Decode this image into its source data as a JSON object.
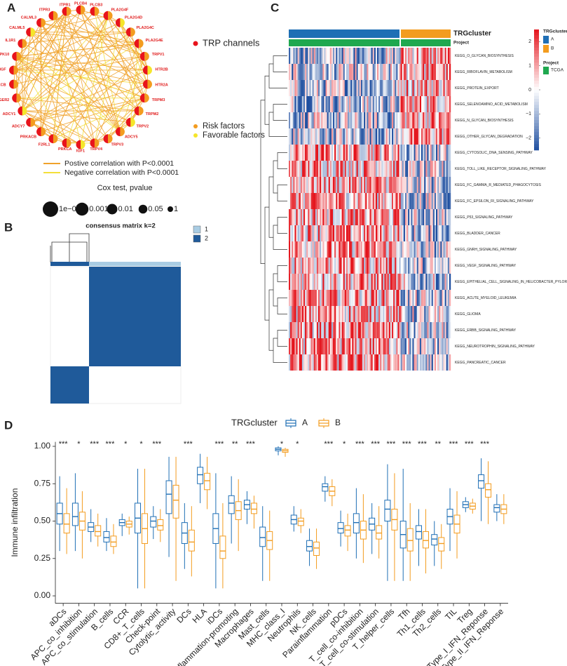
{
  "chart_data": [
    {
      "type": "network",
      "panel_label": "A",
      "nodes": [
        {
          "label": "PLCB4",
          "factor": "Risk factors"
        },
        {
          "label": "PLCB3",
          "factor": "Risk factors"
        },
        {
          "label": "PLA2G4F",
          "factor": "Risk factors"
        },
        {
          "label": "PLA2G4D",
          "factor": "Favorable factors"
        },
        {
          "label": "PLA2G4C",
          "factor": "Risk factors"
        },
        {
          "label": "PLA2G4E",
          "factor": "Risk factors"
        },
        {
          "label": "TRPV1",
          "factor": "Risk factors"
        },
        {
          "label": "HTR2B",
          "factor": "Favorable factors"
        },
        {
          "label": "HTR2A",
          "factor": "Risk factors"
        },
        {
          "label": "TRPM3",
          "factor": "Risk factors"
        },
        {
          "label": "TRPM2",
          "factor": "Risk factors"
        },
        {
          "label": "TRPV2",
          "factor": "Favorable factors"
        },
        {
          "label": "ADCY5",
          "factor": "Risk factors"
        },
        {
          "label": "TRPV3",
          "factor": "Risk factors"
        },
        {
          "label": "TRPV4",
          "factor": "Risk factors"
        },
        {
          "label": "IGF1",
          "factor": "Favorable factors"
        },
        {
          "label": "PRKCA",
          "factor": "Risk factors"
        },
        {
          "label": "F2RL1",
          "factor": "Risk factors"
        },
        {
          "label": "PRKACB",
          "factor": "Risk factors"
        },
        {
          "label": "ADCY7",
          "factor": "Risk factors"
        },
        {
          "label": "ADCY1",
          "factor": "Favorable factors"
        },
        {
          "label": "PTGER2",
          "factor": "Risk factors"
        },
        {
          "label": "PRKCB",
          "factor": "Risk factors"
        },
        {
          "label": "NGF",
          "factor": "Risk factors"
        },
        {
          "label": "MAPK10",
          "factor": "Risk factors"
        },
        {
          "label": "IL1R1",
          "factor": "Risk factors"
        },
        {
          "label": "CALML5",
          "factor": "Favorable factors"
        },
        {
          "label": "CALML3",
          "factor": "Risk factors"
        },
        {
          "label": "ITPR3",
          "factor": "Risk factors"
        },
        {
          "label": "ITPR1",
          "factor": "Risk factors"
        }
      ],
      "node_legend": [
        {
          "name": "TRP channels",
          "color": "#e8141c"
        },
        {
          "name": "Risk factors",
          "color": "#f39c1f"
        },
        {
          "name": "Favorable factors",
          "color": "#f5e52a"
        }
      ],
      "edge_legend": [
        {
          "name": "Postive correlation with P<0.0001",
          "color": "#f0a22b"
        },
        {
          "name": "Negative correlation with P<0.0001",
          "color": "#f3df3a"
        }
      ],
      "size_title": "Cox test, pvalue",
      "sizes": [
        {
          "value": 0.0001,
          "label": "1e−04"
        },
        0.001,
        0.01,
        0.05,
        1
      ]
    },
    {
      "type": "consensus",
      "panel_label": "B",
      "title": "consensus matrix k=2",
      "legend": [
        {
          "name": "1",
          "color": "#a9cce3"
        },
        {
          "name": "2",
          "color": "#1f5a9a"
        }
      ]
    },
    {
      "type": "heatmap",
      "panel_label": "C",
      "annotations": [
        {
          "name": "TRGcluster",
          "groups": [
            {
              "name": "A",
              "color": "#1f6fb5"
            },
            {
              "name": "B",
              "color": "#f39c1f"
            }
          ]
        },
        {
          "name": "Project",
          "groups": [
            {
              "name": "TCGA",
              "color": "#1fa84f"
            }
          ]
        }
      ],
      "rows": [
        {
          "name": "KEGG_O_GLYCAN_BIOSYNTHESIS",
          "higher_in": "B"
        },
        {
          "name": "KEGG_RIBOFLAVIN_METABOLISM",
          "higher_in": "B"
        },
        {
          "name": "KEGG_PROTEIN_EXPORT",
          "higher_in": "B"
        },
        {
          "name": "KEGG_SELENOAMINO_ACID_METABOLISM",
          "higher_in": "B"
        },
        {
          "name": "KEGG_N_GLYCAN_BIOSYNTHESIS",
          "higher_in": "B"
        },
        {
          "name": "KEGG_OTHER_GLYCAN_DEGRADATION",
          "higher_in": "B"
        },
        {
          "name": "KEGG_CYTOSOLIC_DNA_SENSING_PATHWAY",
          "higher_in": "A"
        },
        {
          "name": "KEGG_TOLL_LIKE_RECEPTOR_SIGNALING_PATHWAY",
          "higher_in": "A"
        },
        {
          "name": "KEGG_FC_GAMMA_R_MEDIATED_PHAGOCYTOSIS",
          "higher_in": "A"
        },
        {
          "name": "KEGG_FC_EPSILON_RI_SIGNALING_PATHWAY",
          "higher_in": "A"
        },
        {
          "name": "KEGG_P53_SIGNALING_PATHWAY",
          "higher_in": "A"
        },
        {
          "name": "KEGG_BLADDER_CANCER",
          "higher_in": "A"
        },
        {
          "name": "KEGG_GNRH_SIGNALING_PATHWAY",
          "higher_in": "A"
        },
        {
          "name": "KEGG_VEGF_SIGNALING_PATHWAY",
          "higher_in": "A"
        },
        {
          "name": "KEGG_EPITHELIAL_CELL_SIGNALING_IN_HELICOBACTER_PYLORI_INFECTION",
          "higher_in": "A"
        },
        {
          "name": "KEGG_ACUTE_MYELOID_LEUKEMIA",
          "higher_in": "A"
        },
        {
          "name": "KEGG_GLIOMA",
          "higher_in": "A"
        },
        {
          "name": "KEGG_ERBB_SIGNALING_PATHWAY",
          "higher_in": "A"
        },
        {
          "name": "KEGG_NEUROTROPHIN_SIGNALING_PATHWAY",
          "higher_in": "A"
        },
        {
          "name": "KEGG_PANCREATIC_CANCER",
          "higher_in": "A"
        }
      ],
      "colors": [
        "#1f4fa0",
        "#ffffff",
        "#e4141c"
      ],
      "clim": [
        -2.5,
        2.5
      ],
      "cticks": [
        2,
        1,
        0,
        {
          "value": -1,
          "label": "−1"
        },
        {
          "value": -2,
          "label": "−2"
        }
      ]
    },
    {
      "type": "box",
      "panel_label": "D",
      "legend_title": "TRGcluster",
      "ylabel": "Immune infiltration",
      "categories": [
        "aDCs",
        "APC_co_inhibition",
        "APC_co_stimulation",
        "B_cells",
        "CCR",
        "CD8+_T_cells",
        "Check-point",
        "Cytolytic_activity",
        "DCs",
        "HLA",
        "iDCs",
        "Inflammation-promoting",
        "Macrophages",
        "Mast_cells",
        "MHC_class_I",
        "Neutrophils",
        "NK_cells",
        "Parainflammation",
        "pDCs",
        "T_cell_co-inhibition",
        "T_cell_co-stimulation",
        "T_helper_cells",
        "Tfh",
        "Th1_cells",
        "Th2_cells",
        "TIL",
        "Treg",
        "Type_I_IFN_Reponse",
        "Type_II_IFN_Reponse"
      ],
      "significance": [
        "***",
        "*",
        "***",
        "***",
        "*",
        "*",
        "***",
        null,
        "***",
        null,
        "***",
        "**",
        "***",
        null,
        "*",
        "*",
        null,
        "***",
        "*",
        "***",
        "***",
        "***",
        "***",
        "***",
        "**",
        "***",
        "***",
        "***",
        null
      ],
      "series": [
        {
          "name": "A",
          "color": "#1f6fb5",
          "values": [
            {
              "lo": 0.3,
              "q1": 0.48,
              "med": 0.55,
              "q3": 0.62,
              "hi": 0.8
            },
            {
              "lo": 0.3,
              "q1": 0.47,
              "med": 0.53,
              "q3": 0.62,
              "hi": 0.82
            },
            {
              "lo": 0.36,
              "q1": 0.43,
              "med": 0.46,
              "q3": 0.49,
              "hi": 0.58
            },
            {
              "lo": 0.3,
              "q1": 0.36,
              "med": 0.39,
              "q3": 0.43,
              "hi": 0.52
            },
            {
              "lo": 0.4,
              "q1": 0.47,
              "med": 0.49,
              "q3": 0.51,
              "hi": 0.55
            },
            {
              "lo": 0.05,
              "q1": 0.42,
              "med": 0.52,
              "q3": 0.62,
              "hi": 0.85
            },
            {
              "lo": 0.38,
              "q1": 0.46,
              "med": 0.5,
              "q3": 0.53,
              "hi": 0.6
            },
            {
              "lo": 0.26,
              "q1": 0.55,
              "med": 0.68,
              "q3": 0.77,
              "hi": 0.93
            },
            {
              "lo": 0.18,
              "q1": 0.35,
              "med": 0.42,
              "q3": 0.49,
              "hi": 0.62
            },
            {
              "lo": 0.62,
              "q1": 0.75,
              "med": 0.81,
              "q3": 0.86,
              "hi": 0.95
            },
            {
              "lo": 0.05,
              "q1": 0.35,
              "med": 0.45,
              "q3": 0.55,
              "hi": 0.82
            },
            {
              "lo": 0.35,
              "q1": 0.55,
              "med": 0.62,
              "q3": 0.67,
              "hi": 0.8
            },
            {
              "lo": 0.48,
              "q1": 0.58,
              "med": 0.61,
              "q3": 0.64,
              "hi": 0.7
            },
            {
              "lo": 0.1,
              "q1": 0.33,
              "med": 0.39,
              "q3": 0.46,
              "hi": 0.6
            },
            {
              "lo": 0.94,
              "q1": 0.97,
              "med": 0.98,
              "q3": 0.99,
              "hi": 1.0
            },
            {
              "lo": 0.43,
              "q1": 0.48,
              "med": 0.51,
              "q3": 0.54,
              "hi": 0.6
            },
            {
              "lo": 0.2,
              "q1": 0.3,
              "med": 0.33,
              "q3": 0.37,
              "hi": 0.45
            },
            {
              "lo": 0.63,
              "q1": 0.7,
              "med": 0.73,
              "q3": 0.75,
              "hi": 0.8
            },
            {
              "lo": 0.33,
              "q1": 0.42,
              "med": 0.45,
              "q3": 0.49,
              "hi": 0.57
            },
            {
              "lo": 0.25,
              "q1": 0.42,
              "med": 0.49,
              "q3": 0.55,
              "hi": 0.72
            },
            {
              "lo": 0.28,
              "q1": 0.44,
              "med": 0.48,
              "q3": 0.52,
              "hi": 0.62
            },
            {
              "lo": 0.1,
              "q1": 0.5,
              "med": 0.58,
              "q3": 0.64,
              "hi": 0.88
            },
            {
              "lo": 0.1,
              "q1": 0.32,
              "med": 0.41,
              "q3": 0.5,
              "hi": 0.85
            },
            {
              "lo": 0.2,
              "q1": 0.38,
              "med": 0.43,
              "q3": 0.47,
              "hi": 0.58
            },
            {
              "lo": 0.2,
              "q1": 0.34,
              "med": 0.38,
              "q3": 0.41,
              "hi": 0.5
            },
            {
              "lo": 0.3,
              "q1": 0.48,
              "med": 0.53,
              "q3": 0.58,
              "hi": 0.72
            },
            {
              "lo": 0.56,
              "q1": 0.59,
              "med": 0.61,
              "q3": 0.63,
              "hi": 0.66
            },
            {
              "lo": 0.5,
              "q1": 0.72,
              "med": 0.77,
              "q3": 0.81,
              "hi": 0.92
            },
            {
              "lo": 0.5,
              "q1": 0.56,
              "med": 0.59,
              "q3": 0.61,
              "hi": 0.68
            }
          ]
        },
        {
          "name": "B",
          "color": "#f39c1f",
          "values": [
            {
              "lo": 0.28,
              "q1": 0.42,
              "med": 0.48,
              "q3": 0.55,
              "hi": 0.72
            },
            {
              "lo": 0.25,
              "q1": 0.44,
              "med": 0.5,
              "q3": 0.56,
              "hi": 0.7
            },
            {
              "lo": 0.33,
              "q1": 0.4,
              "med": 0.43,
              "q3": 0.47,
              "hi": 0.55
            },
            {
              "lo": 0.28,
              "q1": 0.33,
              "med": 0.36,
              "q3": 0.4,
              "hi": 0.48
            },
            {
              "lo": 0.41,
              "q1": 0.46,
              "med": 0.48,
              "q3": 0.5,
              "hi": 0.53
            },
            {
              "lo": 0.05,
              "q1": 0.35,
              "med": 0.45,
              "q3": 0.55,
              "hi": 0.85
            },
            {
              "lo": 0.36,
              "q1": 0.44,
              "med": 0.47,
              "q3": 0.51,
              "hi": 0.58
            },
            {
              "lo": 0.1,
              "q1": 0.52,
              "med": 0.64,
              "q3": 0.74,
              "hi": 0.93
            },
            {
              "lo": 0.13,
              "q1": 0.3,
              "med": 0.36,
              "q3": 0.44,
              "hi": 0.6
            },
            {
              "lo": 0.58,
              "q1": 0.71,
              "med": 0.77,
              "q3": 0.82,
              "hi": 0.93
            },
            {
              "lo": 0.05,
              "q1": 0.25,
              "med": 0.3,
              "q3": 0.4,
              "hi": 0.62
            },
            {
              "lo": 0.3,
              "q1": 0.51,
              "med": 0.57,
              "q3": 0.63,
              "hi": 0.78
            },
            {
              "lo": 0.45,
              "q1": 0.55,
              "med": 0.58,
              "q3": 0.62,
              "hi": 0.67
            },
            {
              "lo": 0.1,
              "q1": 0.31,
              "med": 0.37,
              "q3": 0.43,
              "hi": 0.57
            },
            {
              "lo": 0.93,
              "q1": 0.96,
              "med": 0.97,
              "q3": 0.98,
              "hi": 0.99
            },
            {
              "lo": 0.42,
              "q1": 0.47,
              "med": 0.5,
              "q3": 0.52,
              "hi": 0.58
            },
            {
              "lo": 0.18,
              "q1": 0.27,
              "med": 0.32,
              "q3": 0.36,
              "hi": 0.45
            },
            {
              "lo": 0.6,
              "q1": 0.67,
              "med": 0.7,
              "q3": 0.73,
              "hi": 0.78
            },
            {
              "lo": 0.3,
              "q1": 0.4,
              "med": 0.44,
              "q3": 0.47,
              "hi": 0.55
            },
            {
              "lo": 0.22,
              "q1": 0.38,
              "med": 0.44,
              "q3": 0.5,
              "hi": 0.68
            },
            {
              "lo": 0.25,
              "q1": 0.38,
              "med": 0.42,
              "q3": 0.47,
              "hi": 0.6
            },
            {
              "lo": 0.1,
              "q1": 0.44,
              "med": 0.51,
              "q3": 0.58,
              "hi": 0.82
            },
            {
              "lo": 0.1,
              "q1": 0.3,
              "med": 0.37,
              "q3": 0.45,
              "hi": 0.62
            },
            {
              "lo": 0.15,
              "q1": 0.32,
              "med": 0.37,
              "q3": 0.43,
              "hi": 0.58
            },
            {
              "lo": 0.18,
              "q1": 0.3,
              "med": 0.35,
              "q3": 0.39,
              "hi": 0.48
            },
            {
              "lo": 0.25,
              "q1": 0.42,
              "med": 0.48,
              "q3": 0.54,
              "hi": 0.7
            },
            {
              "lo": 0.55,
              "q1": 0.58,
              "med": 0.6,
              "q3": 0.62,
              "hi": 0.65
            },
            {
              "lo": 0.48,
              "q1": 0.66,
              "med": 0.71,
              "q3": 0.75,
              "hi": 0.9
            },
            {
              "lo": 0.48,
              "q1": 0.55,
              "med": 0.58,
              "q3": 0.61,
              "hi": 0.68
            }
          ]
        }
      ],
      "ylim": [
        -0.05,
        1.03
      ],
      "yticks": [
        {
          "value": 0,
          "label": "0.00"
        },
        {
          "value": 0.25,
          "label": "0.25"
        },
        {
          "value": 0.5,
          "label": "0.50"
        },
        {
          "value": 0.75,
          "label": "0.75"
        },
        {
          "value": 1,
          "label": "1.00"
        }
      ]
    }
  ]
}
